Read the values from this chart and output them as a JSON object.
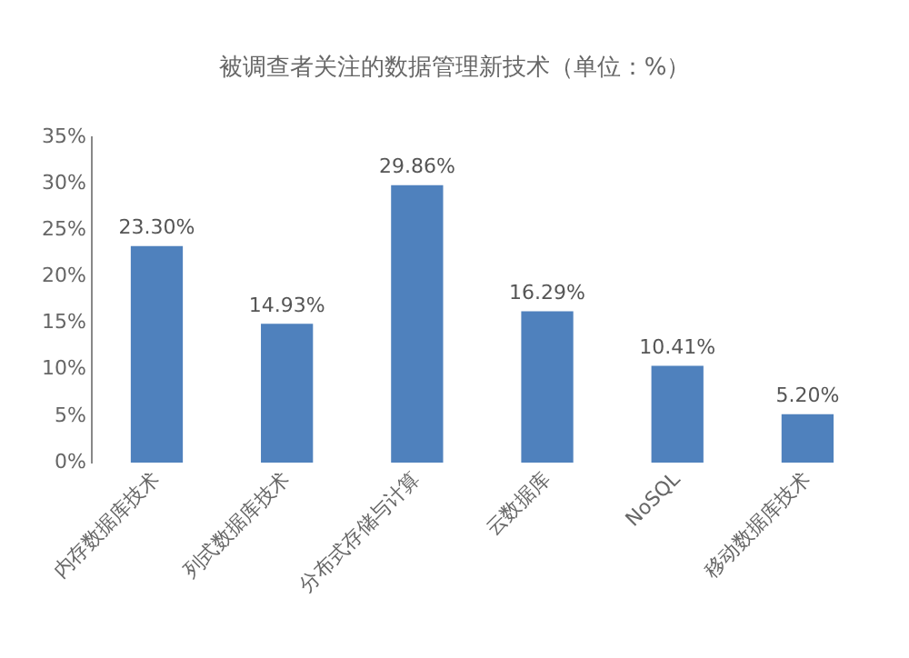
{
  "chart_data": {
    "type": "bar",
    "title": "被调查者关注的数据管理新技术（单位：%）",
    "categories": [
      "内存数据库技术",
      "列式数据库技术",
      "分布式存储与计算",
      "云数据库",
      "NoSQL",
      "移动数据库技术"
    ],
    "values": [
      23.3,
      14.93,
      29.86,
      16.29,
      10.41,
      5.2
    ],
    "value_labels": [
      "23.30%",
      "14.93%",
      "29.86%",
      "16.29%",
      "10.41%",
      "5.20%"
    ],
    "color": "#4f81bd",
    "ylim": [
      0,
      35
    ],
    "yticks": [
      {
        "value": 0,
        "label": "0%"
      },
      {
        "value": 5,
        "label": "5%"
      },
      {
        "value": 10,
        "label": "10%"
      },
      {
        "value": 15,
        "label": "15%"
      },
      {
        "value": 20,
        "label": "20%"
      },
      {
        "value": 25,
        "label": "25%"
      },
      {
        "value": 30,
        "label": "30%"
      },
      {
        "value": 35,
        "label": "35%"
      }
    ],
    "grid": false,
    "legend": false
  }
}
